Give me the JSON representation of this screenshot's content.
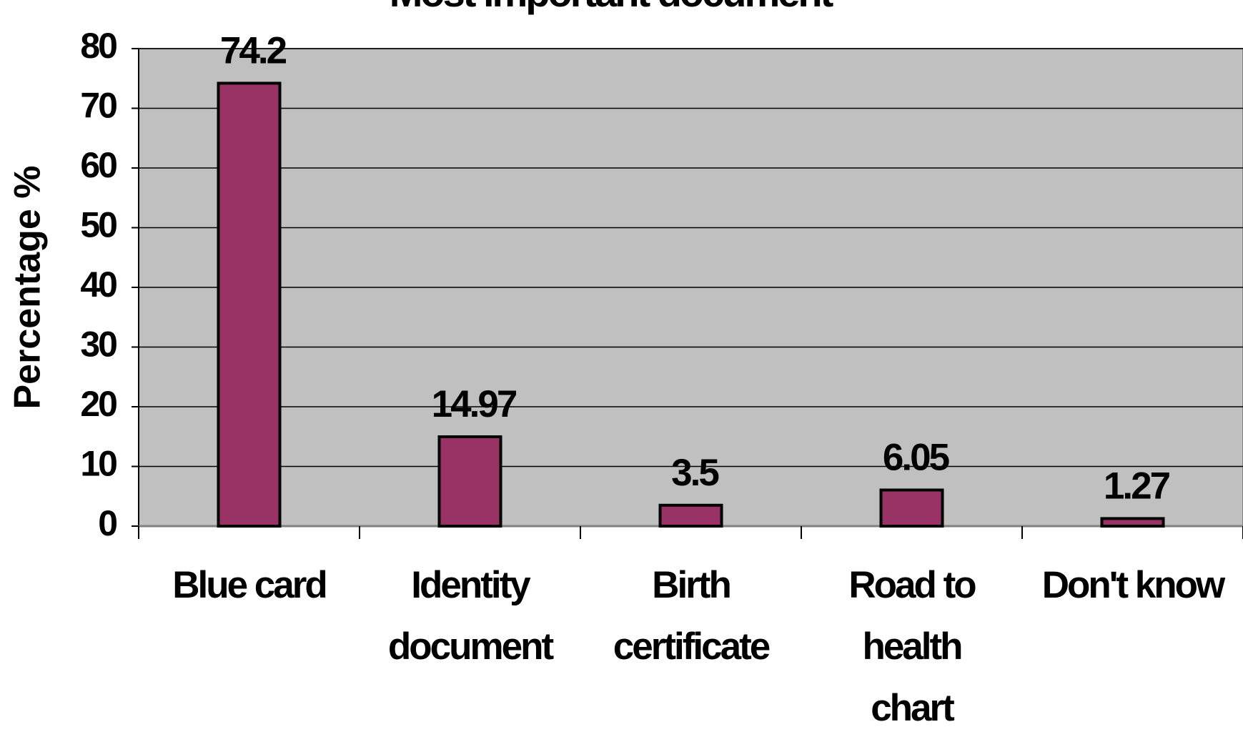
{
  "chart_data": {
    "type": "bar",
    "title": "Most important document",
    "y_label": "Percentage %",
    "categories": [
      "Blue card",
      "Identity document",
      "Birth certificate",
      "Road to health chart",
      "Don't know"
    ],
    "values": [
      74.2,
      14.97,
      3.5,
      6.05,
      1.27
    ],
    "color": "#993366",
    "ylim": [
      0,
      80
    ],
    "yticks": [
      0,
      10,
      20,
      30,
      40,
      50,
      60,
      70,
      80
    ],
    "grid": true
  }
}
